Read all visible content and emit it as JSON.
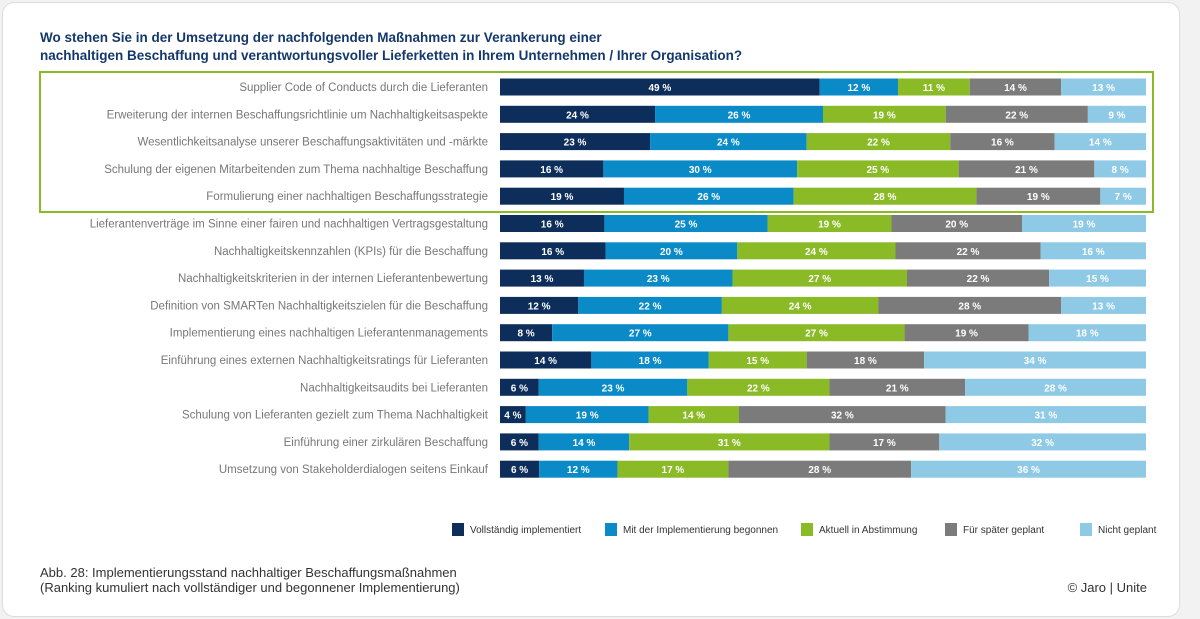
{
  "chart_data": {
    "type": "bar",
    "orientation": "horizontal-stacked-100",
    "title": "Wo stehen Sie in der Umsetzung der nachfolgenden Maßnahmen zur Verankerung einer nachhaltigen Beschaffung und verantwortungsvoller Lieferketten in Ihrem Unternehmen / Ihrer Organisation?",
    "title_lines": [
      "Wo stehen Sie in der Umsetzung der nachfolgenden Maßnahmen zur Verankerung einer",
      "nachhaltigen Beschaffung und verantwortungsvoller Lieferketten in Ihrem Unternehmen / Ihrer Organisation?"
    ],
    "value_suffix": " %",
    "legend_position": "bottom-right",
    "highlighted_rows": 5,
    "highlight_color": "#8aba26",
    "categories": [
      "Supplier Code of Conducts durch die Lieferanten",
      "Erweiterung der internen Beschaffungsrichtlinie um Nachhaltigkeitsaspekte",
      "Wesentlichkeitsanalyse unserer Beschaffungsaktivitäten und -märkte",
      "Schulung der eigenen Mitarbeitenden zum Thema nachhaltige Beschaffung",
      "Formulierung einer nachhaltigen Beschaffungsstrategie",
      "Lieferantenverträge im Sinne einer fairen und nachhaltigen Vertragsgestaltung",
      "Nachhaltigkeitskennzahlen (KPIs) für die Beschaffung",
      "Nachhaltigkeitskriterien in der internen Lieferantenbewertung",
      "Definition von SMARTen Nachhaltigkeitszielen für die Beschaffung",
      "Implementierung eines nachhaltigen Lieferantenmanagements",
      "Einführung eines externen Nachhaltigkeitsratings für Lieferanten",
      "Nachhaltigkeitsaudits bei Lieferanten",
      "Schulung von Lieferanten gezielt zum Thema Nachhaltigkeit",
      "Einführung einer zirkulären Beschaffung",
      "Umsetzung von Stakeholderdialogen seitens Einkauf"
    ],
    "series": [
      {
        "name": "Vollständig implementiert",
        "color": "#0d2d5a",
        "values": [
          49,
          24,
          23,
          16,
          19,
          16,
          16,
          13,
          12,
          8,
          14,
          6,
          4,
          6,
          6
        ]
      },
      {
        "name": "Mit der Implementierung begonnen",
        "color": "#0a8bc7",
        "values": [
          12,
          26,
          24,
          30,
          26,
          25,
          20,
          23,
          22,
          27,
          18,
          23,
          19,
          14,
          12
        ]
      },
      {
        "name": "Aktuell in Abstimmung",
        "color": "#8aba26",
        "values": [
          11,
          19,
          22,
          25,
          28,
          19,
          24,
          27,
          24,
          27,
          15,
          22,
          14,
          31,
          17
        ]
      },
      {
        "name": "Für später geplant",
        "color": "#7b7b7b",
        "values": [
          14,
          22,
          16,
          21,
          19,
          20,
          22,
          22,
          28,
          19,
          18,
          21,
          32,
          17,
          28
        ]
      },
      {
        "name": "Nicht geplant",
        "color": "#8ec9e6",
        "values": [
          13,
          9,
          14,
          8,
          7,
          19,
          16,
          15,
          13,
          18,
          34,
          28,
          31,
          32,
          36
        ]
      }
    ]
  },
  "caption_lines": [
    "Abb. 28: Implementierungsstand nachhaltiger Beschaffungsmaßnahmen",
    "(Ranking kumuliert nach vollständiger und begonnener Implementierung)"
  ],
  "copyright": "© Jaro | Unite"
}
